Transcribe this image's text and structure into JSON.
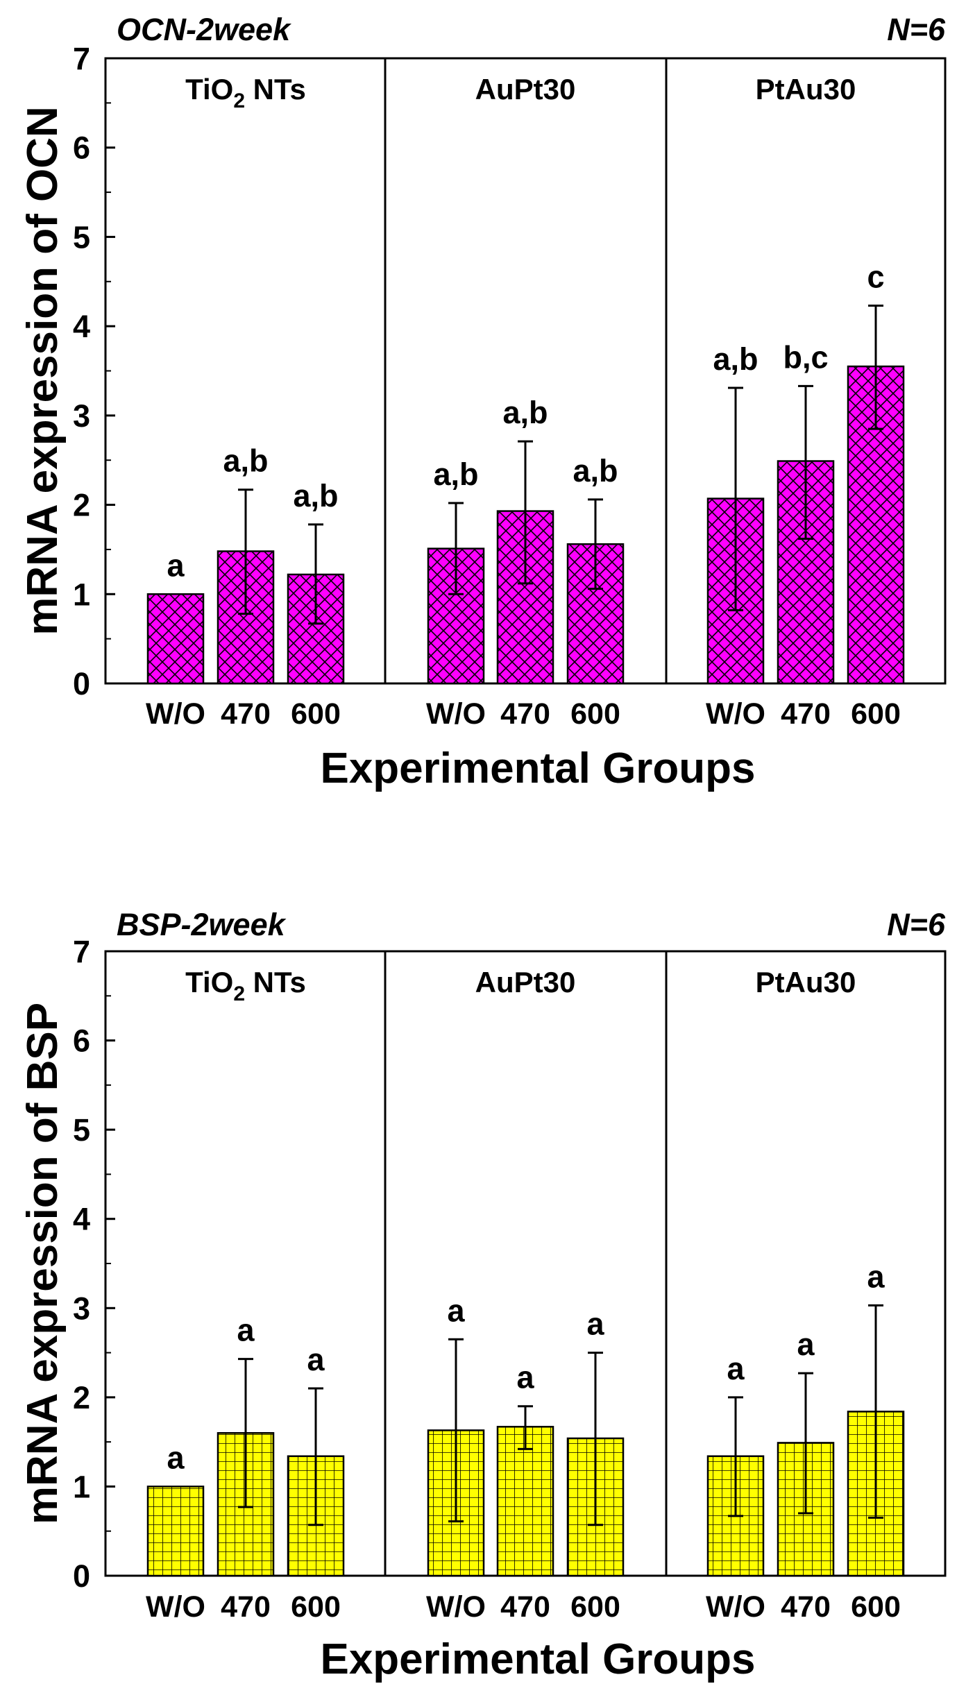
{
  "chart_data": [
    {
      "type": "bar",
      "title": "OCN-2week",
      "n_label": "N=6",
      "ylabel": "mRNA expression of OCN",
      "xlabel": "Experimental Groups",
      "ylim": [
        0,
        7
      ],
      "yticks": [
        "0",
        "1",
        "2",
        "3",
        "4",
        "5",
        "6",
        "7"
      ],
      "bar_color": "#ff00ff",
      "pattern": "crosshatch-diagonal",
      "groups": [
        {
          "panel_label": "TiO",
          "panel_sub": "2",
          "panel_suffix": " NTs",
          "categories": [
            "W/O",
            "470",
            "600"
          ],
          "values": [
            1.0,
            1.48,
            1.22
          ],
          "err_low": [
            0,
            0.78,
            0.67
          ],
          "err_high": [
            0,
            2.17,
            1.78
          ],
          "sig": [
            "a",
            "a,b",
            "a,b"
          ]
        },
        {
          "panel_label": "AuPt30",
          "categories": [
            "W/O",
            "470",
            "600"
          ],
          "values": [
            1.51,
            1.93,
            1.56
          ],
          "err_low": [
            1.0,
            1.12,
            1.06
          ],
          "err_high": [
            2.02,
            2.71,
            2.06
          ],
          "sig": [
            "a,b",
            "a,b",
            "a,b"
          ]
        },
        {
          "panel_label": "PtAu30",
          "categories": [
            "W/O",
            "470",
            "600"
          ],
          "values": [
            2.07,
            2.49,
            3.55
          ],
          "err_low": [
            0.82,
            1.62,
            2.85
          ],
          "err_high": [
            3.31,
            3.33,
            4.23
          ],
          "sig": [
            "a,b",
            "b,c",
            "c"
          ]
        }
      ]
    },
    {
      "type": "bar",
      "title": "BSP-2week",
      "n_label": "N=6",
      "ylabel": "mRNA expression of BSP",
      "xlabel": "Experimental Groups",
      "ylim": [
        0,
        7
      ],
      "yticks": [
        "0",
        "1",
        "2",
        "3",
        "4",
        "5",
        "6",
        "7"
      ],
      "bar_color": "#ffff00",
      "pattern": "grid",
      "groups": [
        {
          "panel_label": "TiO",
          "panel_sub": "2",
          "panel_suffix": " NTs",
          "categories": [
            "W/O",
            "470",
            "600"
          ],
          "values": [
            1.0,
            1.6,
            1.34
          ],
          "err_low": [
            0,
            0.77,
            0.57
          ],
          "err_high": [
            0,
            2.43,
            2.1
          ],
          "sig": [
            "a",
            "a",
            "a"
          ]
        },
        {
          "panel_label": "AuPt30",
          "categories": [
            "W/O",
            "470",
            "600"
          ],
          "values": [
            1.63,
            1.67,
            1.54
          ],
          "err_low": [
            0.61,
            1.42,
            0.57
          ],
          "err_high": [
            2.65,
            1.9,
            2.5
          ],
          "sig": [
            "a",
            "a",
            "a"
          ]
        },
        {
          "panel_label": "PtAu30",
          "categories": [
            "W/O",
            "470",
            "600"
          ],
          "values": [
            1.34,
            1.49,
            1.84
          ],
          "err_low": [
            0.67,
            0.7,
            0.65
          ],
          "err_high": [
            2.0,
            2.27,
            3.03
          ],
          "sig": [
            "a",
            "a",
            "a"
          ]
        }
      ]
    }
  ]
}
